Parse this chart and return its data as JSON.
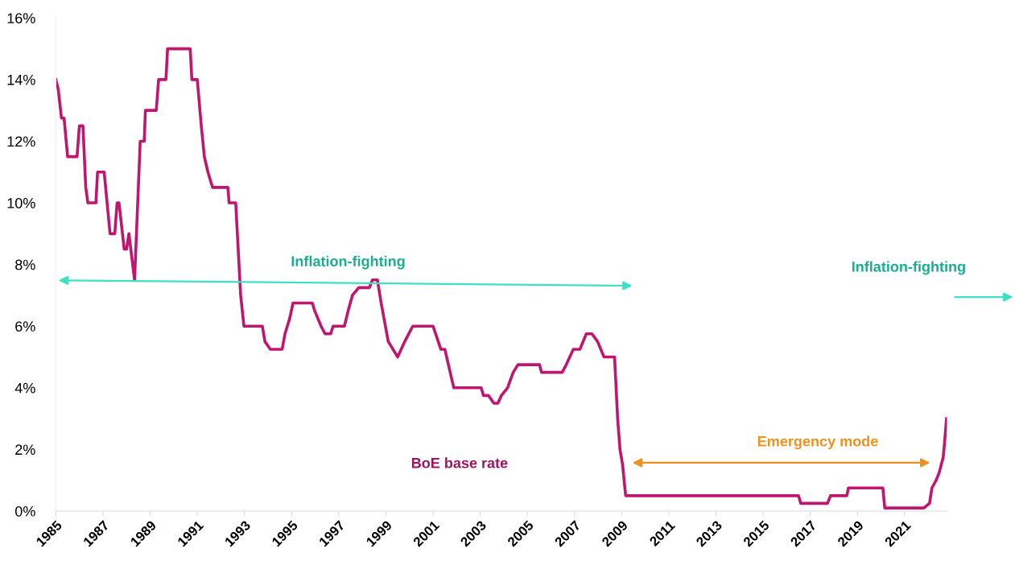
{
  "chart_data": {
    "type": "line",
    "x": [
      1985.0,
      1985.1,
      1985.24,
      1985.35,
      1985.5,
      1985.9,
      1986.0,
      1986.15,
      1986.27,
      1986.36,
      1986.7,
      1986.77,
      1987.05,
      1987.3,
      1987.5,
      1987.6,
      1987.68,
      1987.9,
      1988.0,
      1988.1,
      1988.34,
      1988.58,
      1988.75,
      1988.8,
      1989.26,
      1989.36,
      1989.67,
      1989.74,
      1990.7,
      1990.77,
      1991.0,
      1991.17,
      1991.3,
      1991.45,
      1991.65,
      1992.3,
      1992.35,
      1992.63,
      1992.84,
      1992.98,
      1993.76,
      1993.87,
      1994.1,
      1994.6,
      1994.72,
      1994.92,
      1995.06,
      1995.88,
      1995.98,
      1996.25,
      1996.42,
      1996.66,
      1996.76,
      1997.24,
      1997.4,
      1997.58,
      1997.85,
      1998.3,
      1998.43,
      1998.64,
      1998.8,
      1999.1,
      1999.5,
      1999.8,
      2000.14,
      2001.0,
      2001.33,
      2001.5,
      2001.88,
      2003.04,
      2003.14,
      2003.35,
      2003.58,
      2003.75,
      2003.9,
      2004.16,
      2004.4,
      2004.6,
      2005.52,
      2005.6,
      2006.48,
      2006.65,
      2006.95,
      2007.23,
      2007.5,
      2007.74,
      2007.98,
      2008.25,
      2008.7,
      2008.83,
      2008.93,
      2009.04,
      2009.17,
      2016.5,
      2016.6,
      2017.73,
      2017.86,
      2018.55,
      2018.62,
      2020.08,
      2020.16,
      2021.82,
      2022.06,
      2022.16,
      2022.34,
      2022.47,
      2022.64,
      2022.7,
      2022.78
    ],
    "series": [
      {
        "name": "BoE base rate",
        "color": "#c0166f",
        "values": [
          14.0,
          13.7,
          12.75,
          12.75,
          11.5,
          11.5,
          12.5,
          12.5,
          10.5,
          10.0,
          10.0,
          11.0,
          11.0,
          9.0,
          9.0,
          10.0,
          10.0,
          8.5,
          8.5,
          9.0,
          7.5,
          12.0,
          12.0,
          13.0,
          13.0,
          14.0,
          14.0,
          15.0,
          15.0,
          14.0,
          14.0,
          12.5,
          11.5,
          11.0,
          10.5,
          10.5,
          10.0,
          10.0,
          7.0,
          6.0,
          6.0,
          5.5,
          5.25,
          5.25,
          5.75,
          6.25,
          6.75,
          6.75,
          6.5,
          6.0,
          5.75,
          5.75,
          6.0,
          6.0,
          6.5,
          7.0,
          7.25,
          7.25,
          7.5,
          7.5,
          6.75,
          5.5,
          5.0,
          5.5,
          6.0,
          6.0,
          5.25,
          5.25,
          4.0,
          4.0,
          3.75,
          3.75,
          3.5,
          3.5,
          3.75,
          4.0,
          4.5,
          4.75,
          4.75,
          4.5,
          4.5,
          4.75,
          5.25,
          5.25,
          5.75,
          5.75,
          5.5,
          5.0,
          5.0,
          3.0,
          2.0,
          1.5,
          0.5,
          0.5,
          0.25,
          0.25,
          0.5,
          0.5,
          0.75,
          0.75,
          0.1,
          0.1,
          0.25,
          0.75,
          1.0,
          1.25,
          1.75,
          2.25,
          3.0
        ]
      }
    ],
    "xlim": [
      1985,
      2022.8
    ],
    "xticks": [
      1985,
      1987,
      1989,
      1991,
      1993,
      1995,
      1997,
      1999,
      2001,
      2003,
      2005,
      2007,
      2009,
      2011,
      2013,
      2015,
      2017,
      2019,
      2021
    ],
    "ylim": [
      0,
      16
    ],
    "yticks": [
      {
        "value": 0,
        "label": "0%"
      },
      {
        "value": 2,
        "label": "2%"
      },
      {
        "value": 4,
        "label": "4%"
      },
      {
        "value": 6,
        "label": "6%"
      },
      {
        "value": 8,
        "label": "8%"
      },
      {
        "value": 10,
        "label": "10%"
      },
      {
        "value": 12,
        "label": "12%"
      },
      {
        "value": 14,
        "label": "14%"
      },
      {
        "value": 16,
        "label": "16%"
      }
    ],
    "annotations": [
      "Inflation-fighting",
      "Inflation-fighting",
      "Emergency mode"
    ],
    "grid": false,
    "legend": false,
    "marker": "none",
    "line_style": "solid"
  }
}
